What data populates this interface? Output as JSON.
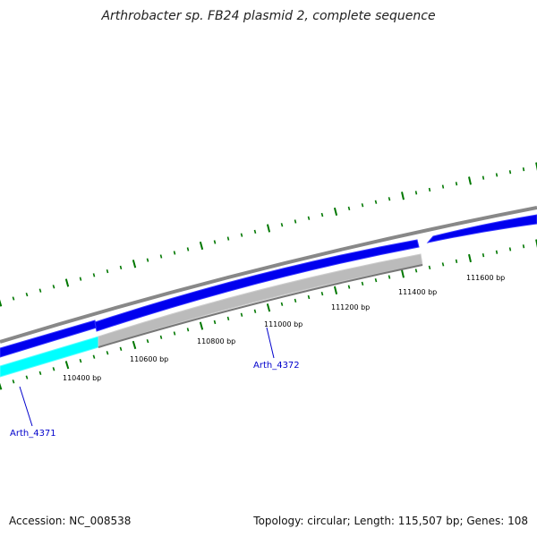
{
  "title": "Arthrobacter sp. FB24 plasmid 2, complete sequence",
  "map": {
    "tick_labels": [
      "110400 bp",
      "110600 bp",
      "110800 bp",
      "111000 bp",
      "111200 bp",
      "111400 bp",
      "111600 bp"
    ],
    "gene_labels": [
      "Arth_4371",
      "Arth_4372"
    ]
  },
  "colors": {
    "backbone": "#888888",
    "forward_gene": "#0000ee",
    "reverse_gene_a": "#00ffff",
    "reverse_gene_b": "#bbbbbb",
    "tick": "#007700",
    "gene_label": "#0000cc"
  },
  "footer": {
    "accession": "Accession: NC_008538",
    "summary": "Topology: circular; Length: 115,507 bp; Genes: 108"
  }
}
